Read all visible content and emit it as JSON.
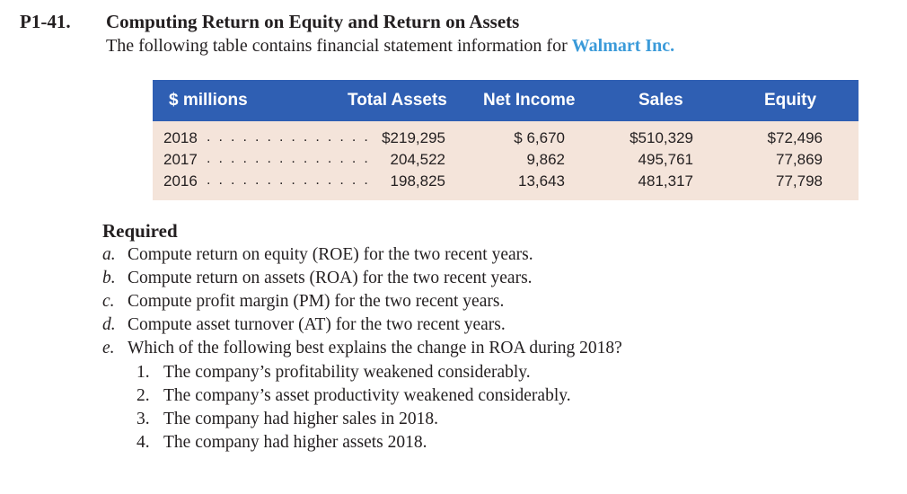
{
  "problem": {
    "number": "P1-41.",
    "title": "Computing Return on Equity and Return on Assets",
    "intro_text": "The following table contains financial statement information for",
    "company": "Walmart Inc."
  },
  "table": {
    "headers": {
      "label": "$ millions",
      "total_assets": "Total Assets",
      "net_income": "Net Income",
      "sales": "Sales",
      "equity": "Equity"
    },
    "leader": ". . . . . . . . . . . . . .",
    "rows": [
      {
        "year": "2018",
        "total_assets": "$219,295",
        "net_income": "$ 6,670",
        "sales": "$510,329",
        "equity": "$72,496"
      },
      {
        "year": "2017",
        "total_assets": "204,522",
        "net_income": "9,862",
        "sales": "495,761",
        "equity": "77,869"
      },
      {
        "year": "2016",
        "total_assets": "198,825",
        "net_income": "13,643",
        "sales": "481,317",
        "equity": "77,798"
      }
    ]
  },
  "required": {
    "heading": "Required",
    "items": [
      {
        "letter": "a.",
        "text": "Compute return on equity (ROE) for the two recent years."
      },
      {
        "letter": "b.",
        "text": "Compute return on assets (ROA) for the two recent years."
      },
      {
        "letter": "c.",
        "text": "Compute profit margin (PM) for the two recent years."
      },
      {
        "letter": "d.",
        "text": "Compute asset turnover (AT) for the two recent years."
      },
      {
        "letter": "e.",
        "text": "Which of the following best explains the change in ROA during 2018?"
      }
    ],
    "options": [
      {
        "num": "1.",
        "text": "The company’s profitability weakened considerably."
      },
      {
        "num": "2.",
        "text": "The company’s asset productivity weakened considerably."
      },
      {
        "num": "3.",
        "text": "The company had higher sales in 2018."
      },
      {
        "num": "4.",
        "text": "The company had higher assets 2018."
      }
    ]
  },
  "colors": {
    "header_bg": "#2f5fb3",
    "body_bg": "#f4e4da",
    "company_link": "#3a9ad9"
  }
}
